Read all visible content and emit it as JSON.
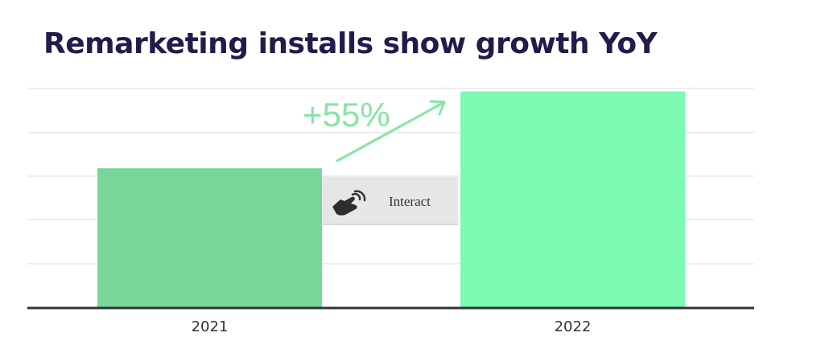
{
  "title": "Remarketing installs show growth YoY",
  "annotation": {
    "growth_label": "+55%",
    "color": "#86e5a6"
  },
  "interact": {
    "label": "Interact",
    "icon": "touch-hand-icon"
  },
  "colors": {
    "bar_2021": "#77d79a",
    "bar_2022": "#7dfab3",
    "grid": "#dddddd",
    "axis": "#333333"
  },
  "chart_data": {
    "type": "bar",
    "categories": [
      "2021",
      "2022"
    ],
    "values": [
      100,
      155
    ],
    "ylim": [
      0,
      160
    ],
    "grid": true,
    "annotations": [
      {
        "text": "+55%",
        "from": "2021",
        "to": "2022"
      }
    ]
  }
}
